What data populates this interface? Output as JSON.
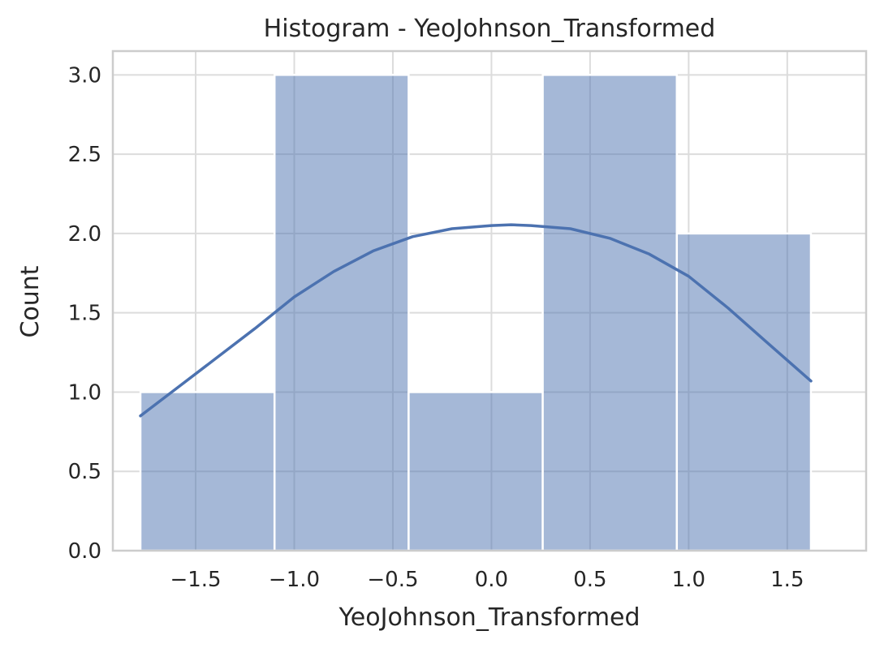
{
  "chart_data": {
    "type": "bar",
    "title": "Histogram - YeoJohnson_Transformed",
    "xlabel": "YeoJohnson_Transformed",
    "ylabel": "Count",
    "xlim": [
      -1.92,
      1.9
    ],
    "ylim": [
      0,
      3.15
    ],
    "xticks": [
      -1.5,
      -1.0,
      -0.5,
      0.0,
      0.5,
      1.0,
      1.5
    ],
    "xtick_labels": [
      "−1.5",
      "−1.0",
      "−0.5",
      "0.0",
      "0.5",
      "1.0",
      "1.5"
    ],
    "yticks": [
      0.0,
      0.5,
      1.0,
      1.5,
      2.0,
      2.5,
      3.0
    ],
    "ytick_labels": [
      "0.0",
      "0.5",
      "1.0",
      "1.5",
      "2.0",
      "2.5",
      "3.0"
    ],
    "grid": true,
    "bins": [
      {
        "x0": -1.78,
        "x1": -1.1,
        "count": 1
      },
      {
        "x0": -1.1,
        "x1": -0.42,
        "count": 3
      },
      {
        "x0": -0.42,
        "x1": 0.26,
        "count": 1
      },
      {
        "x0": 0.26,
        "x1": 0.94,
        "count": 3
      },
      {
        "x0": 0.94,
        "x1": 1.62,
        "count": 2
      }
    ],
    "kde": {
      "x": [
        -1.78,
        -1.6,
        -1.4,
        -1.2,
        -1.0,
        -0.8,
        -0.6,
        -0.4,
        -0.2,
        0.0,
        0.1,
        0.2,
        0.4,
        0.6,
        0.8,
        1.0,
        1.2,
        1.4,
        1.62
      ],
      "y": [
        0.85,
        1.02,
        1.21,
        1.4,
        1.6,
        1.76,
        1.89,
        1.98,
        2.03,
        2.05,
        2.055,
        2.05,
        2.03,
        1.97,
        1.87,
        1.73,
        1.53,
        1.31,
        1.07
      ]
    },
    "colors": {
      "bar": "#4c72b0",
      "line": "#4c72b0"
    }
  }
}
